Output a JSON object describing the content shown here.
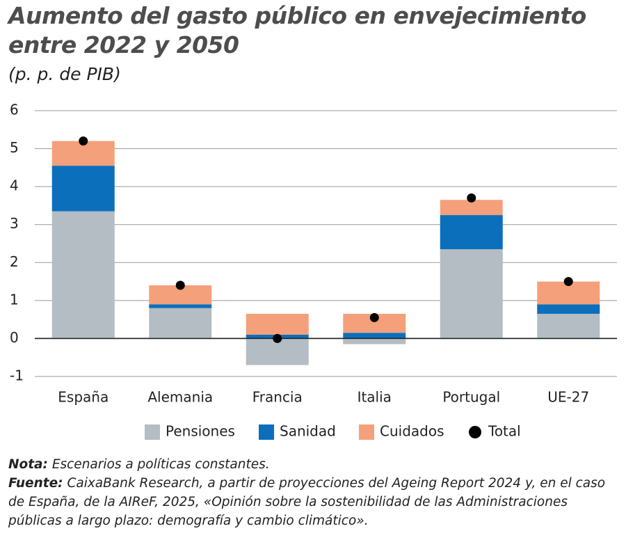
{
  "chart_data": {
    "type": "bar",
    "stacked": true,
    "title": "Aumento del gasto público en envejecimiento entre 2022 y 2050",
    "subtitle": "(p. p. de PIB)",
    "categories": [
      "España",
      "Alemania",
      "Francia",
      "Italia",
      "Portugal",
      "UE-27"
    ],
    "series": [
      {
        "name": "Pensiones",
        "color": "#b3bdc3",
        "style": "bar",
        "values": [
          3.35,
          0.8,
          -0.7,
          -0.15,
          2.35,
          0.65
        ]
      },
      {
        "name": "Sanidad",
        "color": "#0b6fbc",
        "style": "bar",
        "values": [
          1.2,
          0.1,
          0.1,
          0.15,
          0.9,
          0.25
        ]
      },
      {
        "name": "Cuidados",
        "color": "#f4a07a",
        "style": "bar",
        "values": [
          0.65,
          0.5,
          0.55,
          0.5,
          0.4,
          0.6
        ]
      },
      {
        "name": "Total",
        "color": "#000000",
        "style": "dot",
        "values": [
          5.2,
          1.4,
          0,
          0.55,
          3.7,
          1.5
        ]
      }
    ],
    "ylim": [
      -1,
      6
    ],
    "yticks": [
      -1,
      0,
      1,
      2,
      3,
      4,
      5,
      6
    ],
    "grid": true,
    "legend": "bottom",
    "notes": [
      {
        "label": "Nota:",
        "text": "Escenarios a políticas constantes."
      },
      {
        "label": "Fuente:",
        "text": "CaixaBank Research, a partir de proyecciones del Ageing Report 2024 y, en el caso de España, de la AIReF, 2025, «Opinión sobre la sostenibilidad de las Administraciones públicas a largo plazo: demografía y cambio climático»."
      }
    ]
  }
}
